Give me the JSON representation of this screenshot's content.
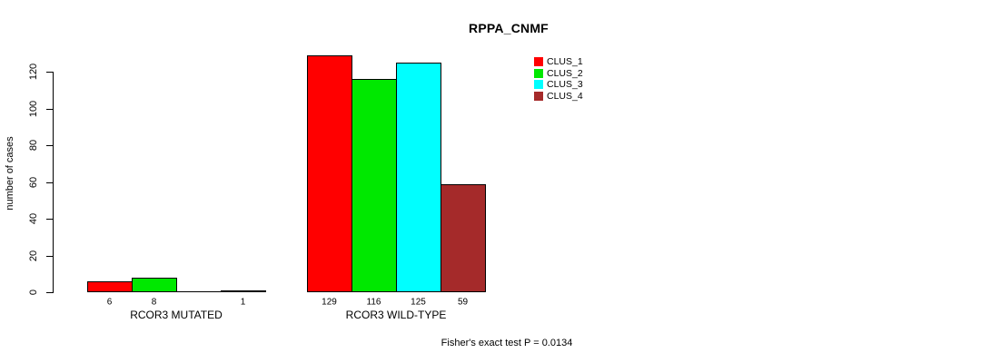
{
  "chart_data": {
    "type": "bar",
    "title": "RPPA_CNMF",
    "ylabel": "number of cases",
    "xlabel": "",
    "ylim": [
      0,
      120
    ],
    "yticks": [
      0,
      20,
      40,
      60,
      80,
      100,
      120
    ],
    "grid": false,
    "legend_position": "top-right",
    "series": [
      {
        "name": "CLUS_1",
        "color": "#FF0000"
      },
      {
        "name": "CLUS_2",
        "color": "#00E800"
      },
      {
        "name": "CLUS_3",
        "color": "#00FFFF"
      },
      {
        "name": "CLUS_4",
        "color": "#A52A2A"
      }
    ],
    "groups": [
      {
        "label": "RCOR3 MUTATED",
        "values": [
          6,
          8,
          0,
          1
        ],
        "value_labels": [
          "6",
          "8",
          "",
          "1"
        ]
      },
      {
        "label": "RCOR3 WILD-TYPE",
        "values": [
          129,
          116,
          125,
          59
        ],
        "value_labels": [
          "129",
          "116",
          "125",
          "59"
        ]
      }
    ],
    "annotation": "Fisher's exact test P = 0.0134"
  }
}
